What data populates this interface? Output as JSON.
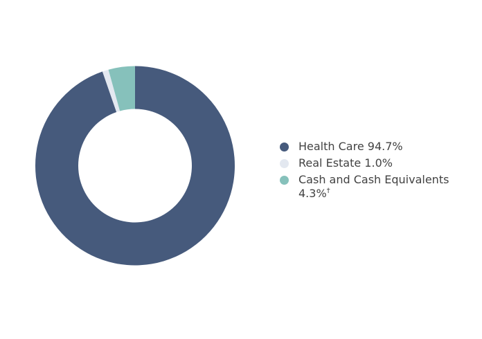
{
  "chart_data": {
    "type": "pie",
    "subtype": "donut",
    "title": "",
    "labels": [
      "Health Care",
      "Real Estate",
      "Cash and Cash Equivalents"
    ],
    "values": [
      94.7,
      1.0,
      4.3
    ],
    "unit": "%",
    "colors": [
      "#465A7C",
      "#E3E8F0",
      "#86C1BB"
    ],
    "hole_ratio": 0.57,
    "direction": "clockwise",
    "start_position": "top",
    "background_color": "#FFFFFF",
    "text_color": "#424242",
    "legend": {
      "position": "right",
      "entries": [
        {
          "label": "Health Care 94.7%",
          "marker_color": "#465A7C",
          "footnote_marker": ""
        },
        {
          "label": "Real Estate 1.0%",
          "marker_color": "#E3E8F0",
          "footnote_marker": ""
        },
        {
          "label": "Cash and Cash Equivalents 4.3%",
          "marker_color": "#86C1BB",
          "footnote_marker": "†"
        }
      ]
    }
  }
}
